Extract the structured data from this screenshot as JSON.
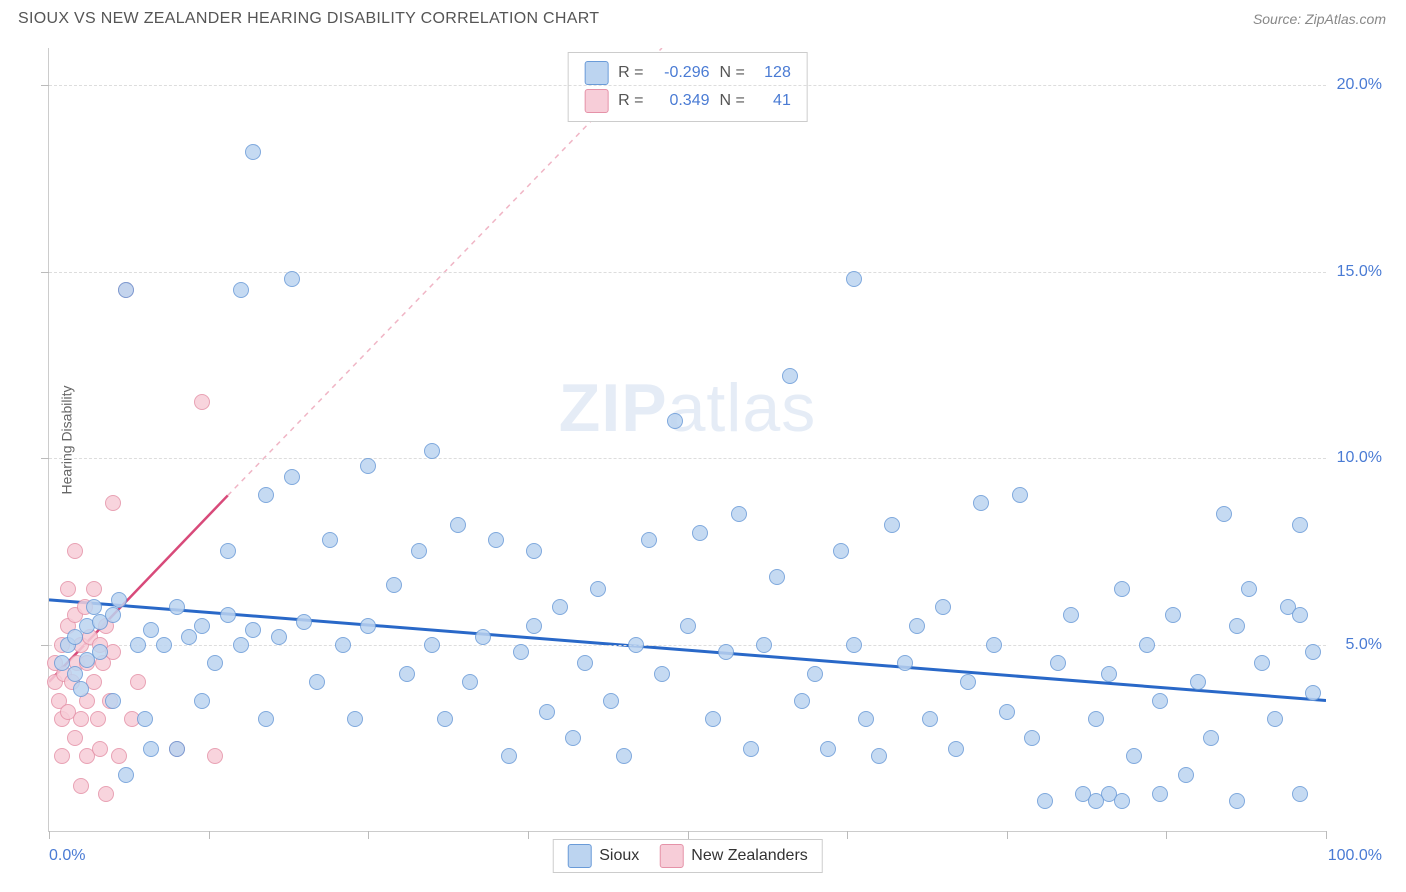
{
  "header": {
    "title": "SIOUX VS NEW ZEALANDER HEARING DISABILITY CORRELATION CHART",
    "source": "Source: ZipAtlas.com"
  },
  "chart": {
    "type": "scatter",
    "ylabel": "Hearing Disability",
    "xlim": [
      0,
      100
    ],
    "ylim": [
      0,
      21
    ],
    "yticks": [
      5,
      10,
      15,
      20
    ],
    "ytick_labels": [
      "5.0%",
      "10.0%",
      "15.0%",
      "20.0%"
    ],
    "xticks": [
      0,
      12.5,
      25,
      37.5,
      50,
      62.5,
      75,
      87.5,
      100
    ],
    "xtick_labels_shown": {
      "0": "0.0%",
      "100": "100.0%"
    },
    "grid_color": "#dddddd",
    "axis_color": "#cccccc",
    "background_color": "#ffffff",
    "marker_size": 16,
    "marker_stroke_width": 1.2,
    "series": {
      "sioux": {
        "label": "Sioux",
        "fill": "#bcd4f0",
        "stroke": "#6a9bd8",
        "points": [
          [
            1,
            4.5
          ],
          [
            1.5,
            5
          ],
          [
            2,
            4.2
          ],
          [
            2,
            5.2
          ],
          [
            2.5,
            3.8
          ],
          [
            3,
            5.5
          ],
          [
            3,
            4.6
          ],
          [
            3.5,
            6
          ],
          [
            4,
            4.8
          ],
          [
            4,
            5.6
          ],
          [
            5,
            5.8
          ],
          [
            5,
            3.5
          ],
          [
            5.5,
            6.2
          ],
          [
            6,
            1.5
          ],
          [
            6,
            14.5
          ],
          [
            7,
            5.0
          ],
          [
            7.5,
            3.0
          ],
          [
            8,
            5.4
          ],
          [
            8,
            2.2
          ],
          [
            9,
            5.0
          ],
          [
            10,
            6.0
          ],
          [
            10,
            2.2
          ],
          [
            11,
            5.2
          ],
          [
            12,
            5.5
          ],
          [
            12,
            3.5
          ],
          [
            13,
            4.5
          ],
          [
            14,
            5.8
          ],
          [
            14,
            7.5
          ],
          [
            15,
            5.0
          ],
          [
            15,
            14.5
          ],
          [
            16,
            5.4
          ],
          [
            16,
            18.2
          ],
          [
            17,
            3.0
          ],
          [
            17,
            9.0
          ],
          [
            18,
            5.2
          ],
          [
            19,
            14.8
          ],
          [
            19,
            9.5
          ],
          [
            20,
            5.6
          ],
          [
            21,
            4.0
          ],
          [
            22,
            7.8
          ],
          [
            23,
            5.0
          ],
          [
            24,
            3.0
          ],
          [
            25,
            5.5
          ],
          [
            25,
            9.8
          ],
          [
            27,
            6.6
          ],
          [
            28,
            4.2
          ],
          [
            29,
            7.5
          ],
          [
            30,
            5.0
          ],
          [
            30,
            10.2
          ],
          [
            31,
            3.0
          ],
          [
            32,
            8.2
          ],
          [
            33,
            4.0
          ],
          [
            34,
            5.2
          ],
          [
            35,
            7.8
          ],
          [
            36,
            2.0
          ],
          [
            37,
            4.8
          ],
          [
            38,
            7.5
          ],
          [
            38,
            5.5
          ],
          [
            39,
            3.2
          ],
          [
            40,
            6.0
          ],
          [
            41,
            2.5
          ],
          [
            42,
            4.5
          ],
          [
            43,
            6.5
          ],
          [
            44,
            3.5
          ],
          [
            45,
            2.0
          ],
          [
            46,
            5.0
          ],
          [
            47,
            7.8
          ],
          [
            48,
            4.2
          ],
          [
            49,
            11.0
          ],
          [
            50,
            5.5
          ],
          [
            51,
            8.0
          ],
          [
            52,
            3.0
          ],
          [
            53,
            4.8
          ],
          [
            54,
            8.5
          ],
          [
            55,
            2.2
          ],
          [
            56,
            5.0
          ],
          [
            57,
            6.8
          ],
          [
            58,
            12.2
          ],
          [
            59,
            3.5
          ],
          [
            60,
            4.2
          ],
          [
            61,
            2.2
          ],
          [
            62,
            7.5
          ],
          [
            63,
            5.0
          ],
          [
            63,
            14.8
          ],
          [
            64,
            3.0
          ],
          [
            65,
            2.0
          ],
          [
            66,
            8.2
          ],
          [
            67,
            4.5
          ],
          [
            68,
            5.5
          ],
          [
            69,
            3.0
          ],
          [
            70,
            6.0
          ],
          [
            71,
            2.2
          ],
          [
            72,
            4.0
          ],
          [
            73,
            8.8
          ],
          [
            74,
            5.0
          ],
          [
            75,
            3.2
          ],
          [
            76,
            9.0
          ],
          [
            77,
            2.5
          ],
          [
            78,
            0.8
          ],
          [
            79,
            4.5
          ],
          [
            80,
            5.8
          ],
          [
            81,
            1.0
          ],
          [
            82,
            3.0
          ],
          [
            83,
            4.2
          ],
          [
            83,
            1.0
          ],
          [
            84,
            6.5
          ],
          [
            85,
            2.0
          ],
          [
            86,
            5.0
          ],
          [
            87,
            3.5
          ],
          [
            88,
            5.8
          ],
          [
            89,
            1.5
          ],
          [
            90,
            4.0
          ],
          [
            91,
            2.5
          ],
          [
            92,
            8.5
          ],
          [
            93,
            5.5
          ],
          [
            94,
            6.5
          ],
          [
            95,
            4.5
          ],
          [
            96,
            3.0
          ],
          [
            97,
            6.0
          ],
          [
            98,
            8.2
          ],
          [
            98,
            5.8
          ],
          [
            98,
            1.0
          ],
          [
            99,
            4.8
          ],
          [
            99,
            3.7
          ],
          [
            82,
            0.8
          ],
          [
            84,
            0.8
          ],
          [
            87,
            1.0
          ],
          [
            93,
            0.8
          ]
        ],
        "trend": {
          "x1": 0,
          "y1": 6.2,
          "x2": 100,
          "y2": 3.5,
          "color": "#2968c8",
          "width": 3,
          "dash": "none"
        }
      },
      "nz": {
        "label": "New Zealanders",
        "fill": "#f7cdd8",
        "stroke": "#e592a8",
        "points": [
          [
            0.5,
            4.0
          ],
          [
            0.5,
            4.5
          ],
          [
            0.8,
            3.5
          ],
          [
            1,
            5.0
          ],
          [
            1,
            3.0
          ],
          [
            1,
            2.0
          ],
          [
            1.2,
            4.2
          ],
          [
            1.5,
            5.5
          ],
          [
            1.5,
            6.5
          ],
          [
            1.5,
            3.2
          ],
          [
            1.8,
            4.0
          ],
          [
            2,
            5.8
          ],
          [
            2,
            2.5
          ],
          [
            2,
            7.5
          ],
          [
            2.2,
            4.5
          ],
          [
            2.5,
            3.0
          ],
          [
            2.5,
            5.0
          ],
          [
            2.5,
            1.2
          ],
          [
            2.8,
            6.0
          ],
          [
            3,
            4.5
          ],
          [
            3,
            2.0
          ],
          [
            3,
            3.5
          ],
          [
            3.2,
            5.2
          ],
          [
            3.5,
            4.0
          ],
          [
            3.5,
            6.5
          ],
          [
            3.8,
            3.0
          ],
          [
            4,
            5.0
          ],
          [
            4,
            2.2
          ],
          [
            4.2,
            4.5
          ],
          [
            4.5,
            5.5
          ],
          [
            4.5,
            1.0
          ],
          [
            4.8,
            3.5
          ],
          [
            5,
            4.8
          ],
          [
            5,
            8.8
          ],
          [
            5.5,
            2.0
          ],
          [
            6,
            14.5
          ],
          [
            6.5,
            3.0
          ],
          [
            7,
            4.0
          ],
          [
            10,
            2.2
          ],
          [
            12,
            11.5
          ],
          [
            13,
            2.0
          ]
        ],
        "trend_solid": {
          "x1": 0,
          "y1": 4.0,
          "x2": 14,
          "y2": 9.0,
          "color": "#d84a7a",
          "width": 2.5,
          "dash": "none"
        },
        "trend_dash": {
          "x1": 14,
          "y1": 9.0,
          "x2": 48,
          "y2": 21,
          "color": "#f0b5c5",
          "width": 1.5,
          "dash": "5,5"
        }
      }
    },
    "stats_box": {
      "rows": [
        {
          "swatch_fill": "#bcd4f0",
          "swatch_stroke": "#6a9bd8",
          "r_label": "R =",
          "r_val": "-0.296",
          "n_label": "N =",
          "n_val": "128"
        },
        {
          "swatch_fill": "#f7cdd8",
          "swatch_stroke": "#e592a8",
          "r_label": "R =",
          "r_val": "0.349",
          "n_label": "N =",
          "n_val": "41"
        }
      ]
    },
    "bottom_legend": [
      {
        "swatch_fill": "#bcd4f0",
        "swatch_stroke": "#6a9bd8",
        "label": "Sioux"
      },
      {
        "swatch_fill": "#f7cdd8",
        "swatch_stroke": "#e592a8",
        "label": "New Zealanders"
      }
    ],
    "watermark": {
      "bold": "ZIP",
      "rest": "atlas"
    }
  }
}
